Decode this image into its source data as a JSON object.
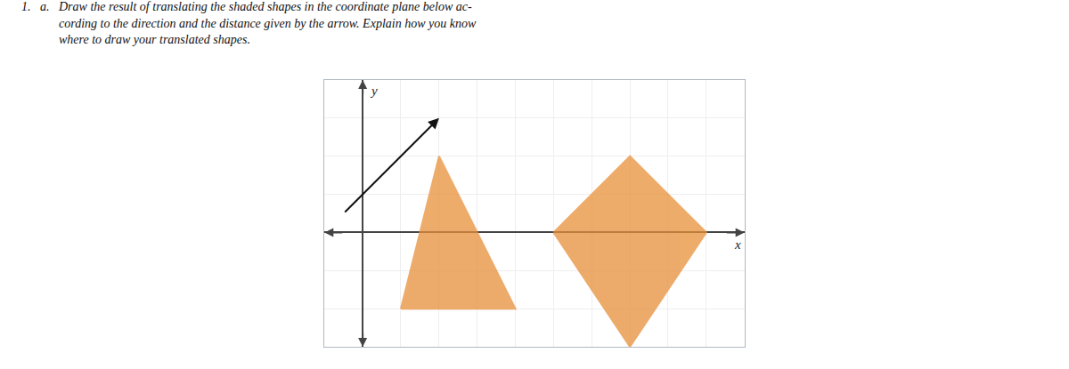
{
  "chart_data": {
    "type": "polygon",
    "title": "1.   a.   Draw the result of translating the shaded shapes in the coordinate plane below ac-\n            cording to the direction and the distance given by the arrow. Explain how you know\n            where to draw your translated shapes.",
    "xlabel": "x",
    "ylabel": "y",
    "xlim": [
      -1,
      10
    ],
    "xticks": [
      -1,
      0,
      1,
      2,
      3,
      4,
      5,
      6,
      7,
      8,
      9,
      10
    ],
    "ylim": [
      -3,
      4
    ],
    "yticks": [
      -3,
      -2,
      -1,
      0,
      1,
      2,
      3,
      4
    ],
    "grid": true,
    "tick_labels": false,
    "series": [
      {
        "type": "polygon",
        "color": "#e8903a",
        "x": [
          1,
          2,
          4,
          1
        ],
        "values": [
          -2,
          2,
          -2,
          -2
        ]
      },
      {
        "type": "polygon",
        "color": "#e8903a",
        "x": [
          5,
          7,
          9,
          7,
          5
        ],
        "values": [
          0,
          2,
          0,
          -3,
          0
        ]
      },
      {
        "type": "arrow",
        "color": "#111111",
        "x": [
          -0.5,
          2
        ],
        "values": [
          0.5,
          3
        ]
      }
    ]
  }
}
